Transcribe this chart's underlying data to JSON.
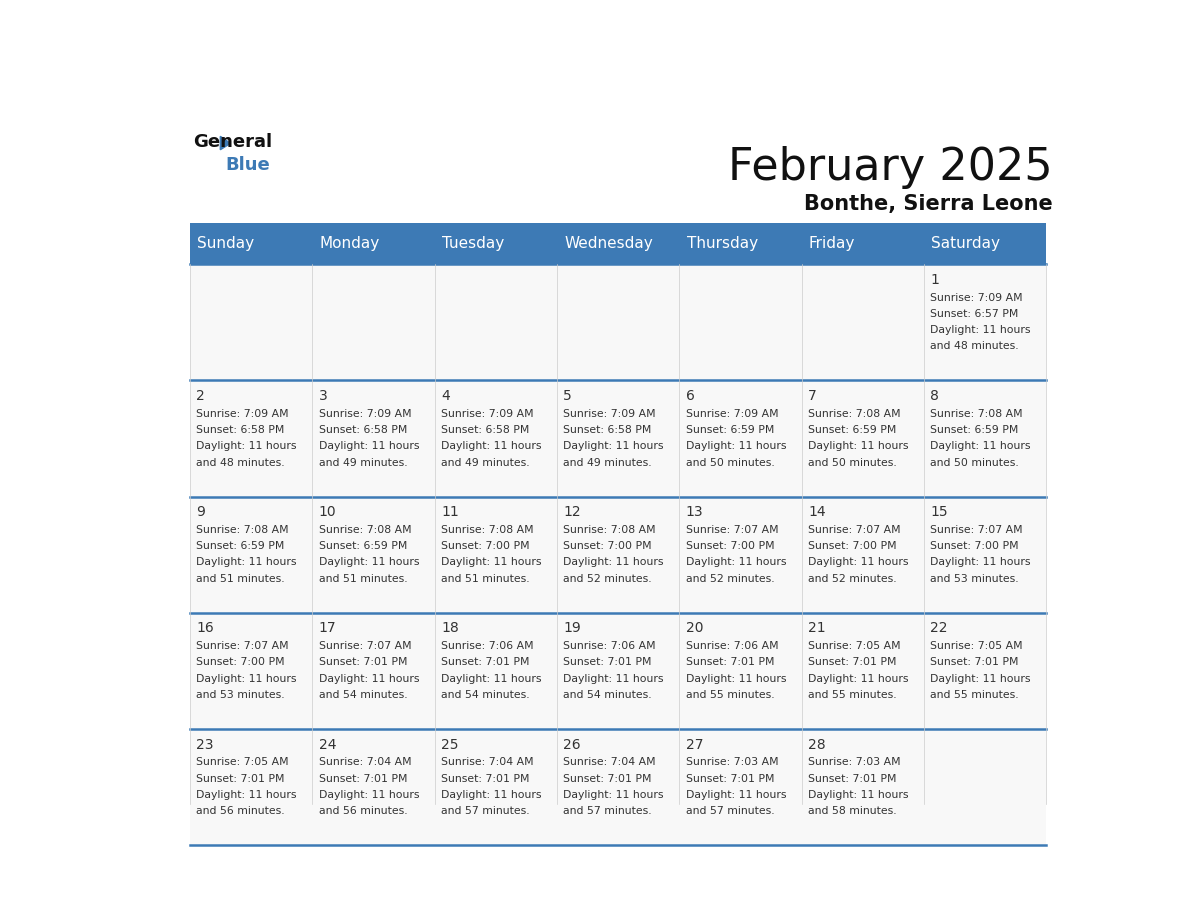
{
  "title": "February 2025",
  "subtitle": "Bonthe, Sierra Leone",
  "header_bg_color": "#3d7ab5",
  "header_text_color": "#ffffff",
  "day_names": [
    "Sunday",
    "Monday",
    "Tuesday",
    "Wednesday",
    "Thursday",
    "Friday",
    "Saturday"
  ],
  "bg_color": "#ffffff",
  "cell_bg_color": "#f8f8f8",
  "date_color": "#333333",
  "text_color": "#333333",
  "line_color": "#3d7ab5",
  "days": [
    {
      "date": 1,
      "col": 6,
      "row": 0,
      "sunrise": "7:09 AM",
      "sunset": "6:57 PM",
      "daylight_hours": 11,
      "daylight_minutes": 48
    },
    {
      "date": 2,
      "col": 0,
      "row": 1,
      "sunrise": "7:09 AM",
      "sunset": "6:58 PM",
      "daylight_hours": 11,
      "daylight_minutes": 48
    },
    {
      "date": 3,
      "col": 1,
      "row": 1,
      "sunrise": "7:09 AM",
      "sunset": "6:58 PM",
      "daylight_hours": 11,
      "daylight_minutes": 49
    },
    {
      "date": 4,
      "col": 2,
      "row": 1,
      "sunrise": "7:09 AM",
      "sunset": "6:58 PM",
      "daylight_hours": 11,
      "daylight_minutes": 49
    },
    {
      "date": 5,
      "col": 3,
      "row": 1,
      "sunrise": "7:09 AM",
      "sunset": "6:58 PM",
      "daylight_hours": 11,
      "daylight_minutes": 49
    },
    {
      "date": 6,
      "col": 4,
      "row": 1,
      "sunrise": "7:09 AM",
      "sunset": "6:59 PM",
      "daylight_hours": 11,
      "daylight_minutes": 50
    },
    {
      "date": 7,
      "col": 5,
      "row": 1,
      "sunrise": "7:08 AM",
      "sunset": "6:59 PM",
      "daylight_hours": 11,
      "daylight_minutes": 50
    },
    {
      "date": 8,
      "col": 6,
      "row": 1,
      "sunrise": "7:08 AM",
      "sunset": "6:59 PM",
      "daylight_hours": 11,
      "daylight_minutes": 50
    },
    {
      "date": 9,
      "col": 0,
      "row": 2,
      "sunrise": "7:08 AM",
      "sunset": "6:59 PM",
      "daylight_hours": 11,
      "daylight_minutes": 51
    },
    {
      "date": 10,
      "col": 1,
      "row": 2,
      "sunrise": "7:08 AM",
      "sunset": "6:59 PM",
      "daylight_hours": 11,
      "daylight_minutes": 51
    },
    {
      "date": 11,
      "col": 2,
      "row": 2,
      "sunrise": "7:08 AM",
      "sunset": "7:00 PM",
      "daylight_hours": 11,
      "daylight_minutes": 51
    },
    {
      "date": 12,
      "col": 3,
      "row": 2,
      "sunrise": "7:08 AM",
      "sunset": "7:00 PM",
      "daylight_hours": 11,
      "daylight_minutes": 52
    },
    {
      "date": 13,
      "col": 4,
      "row": 2,
      "sunrise": "7:07 AM",
      "sunset": "7:00 PM",
      "daylight_hours": 11,
      "daylight_minutes": 52
    },
    {
      "date": 14,
      "col": 5,
      "row": 2,
      "sunrise": "7:07 AM",
      "sunset": "7:00 PM",
      "daylight_hours": 11,
      "daylight_minutes": 52
    },
    {
      "date": 15,
      "col": 6,
      "row": 2,
      "sunrise": "7:07 AM",
      "sunset": "7:00 PM",
      "daylight_hours": 11,
      "daylight_minutes": 53
    },
    {
      "date": 16,
      "col": 0,
      "row": 3,
      "sunrise": "7:07 AM",
      "sunset": "7:00 PM",
      "daylight_hours": 11,
      "daylight_minutes": 53
    },
    {
      "date": 17,
      "col": 1,
      "row": 3,
      "sunrise": "7:07 AM",
      "sunset": "7:01 PM",
      "daylight_hours": 11,
      "daylight_minutes": 54
    },
    {
      "date": 18,
      "col": 2,
      "row": 3,
      "sunrise": "7:06 AM",
      "sunset": "7:01 PM",
      "daylight_hours": 11,
      "daylight_minutes": 54
    },
    {
      "date": 19,
      "col": 3,
      "row": 3,
      "sunrise": "7:06 AM",
      "sunset": "7:01 PM",
      "daylight_hours": 11,
      "daylight_minutes": 54
    },
    {
      "date": 20,
      "col": 4,
      "row": 3,
      "sunrise": "7:06 AM",
      "sunset": "7:01 PM",
      "daylight_hours": 11,
      "daylight_minutes": 55
    },
    {
      "date": 21,
      "col": 5,
      "row": 3,
      "sunrise": "7:05 AM",
      "sunset": "7:01 PM",
      "daylight_hours": 11,
      "daylight_minutes": 55
    },
    {
      "date": 22,
      "col": 6,
      "row": 3,
      "sunrise": "7:05 AM",
      "sunset": "7:01 PM",
      "daylight_hours": 11,
      "daylight_minutes": 55
    },
    {
      "date": 23,
      "col": 0,
      "row": 4,
      "sunrise": "7:05 AM",
      "sunset": "7:01 PM",
      "daylight_hours": 11,
      "daylight_minutes": 56
    },
    {
      "date": 24,
      "col": 1,
      "row": 4,
      "sunrise": "7:04 AM",
      "sunset": "7:01 PM",
      "daylight_hours": 11,
      "daylight_minutes": 56
    },
    {
      "date": 25,
      "col": 2,
      "row": 4,
      "sunrise": "7:04 AM",
      "sunset": "7:01 PM",
      "daylight_hours": 11,
      "daylight_minutes": 57
    },
    {
      "date": 26,
      "col": 3,
      "row": 4,
      "sunrise": "7:04 AM",
      "sunset": "7:01 PM",
      "daylight_hours": 11,
      "daylight_minutes": 57
    },
    {
      "date": 27,
      "col": 4,
      "row": 4,
      "sunrise": "7:03 AM",
      "sunset": "7:01 PM",
      "daylight_hours": 11,
      "daylight_minutes": 57
    },
    {
      "date": 28,
      "col": 5,
      "row": 4,
      "sunrise": "7:03 AM",
      "sunset": "7:01 PM",
      "daylight_hours": 11,
      "daylight_minutes": 58
    }
  ],
  "num_rows": 5,
  "logo_general_color": "#111111",
  "logo_blue_color": "#3d7ab5",
  "title_color": "#111111",
  "subtitle_color": "#111111"
}
